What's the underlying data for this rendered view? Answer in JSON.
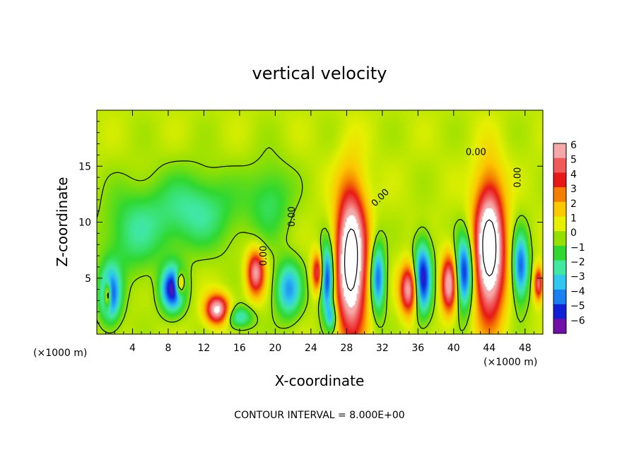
{
  "chart_data": {
    "type": "heatmap",
    "title": "vertical velocity",
    "xlabel": "X-coordinate",
    "ylabel": "Z-coordinate",
    "x_unit_label": "(×1000 m)",
    "x_unit_label_right": "(×1000 m)",
    "footer": "CONTOUR INTERVAL = 8.000E+00",
    "xlim": [
      0,
      50
    ],
    "ylim": [
      0,
      20
    ],
    "x_ticks": [
      4,
      8,
      12,
      16,
      20,
      24,
      28,
      32,
      36,
      40,
      44,
      48
    ],
    "y_ticks": [
      5,
      10,
      15
    ],
    "colorbar": {
      "levels": [
        6,
        5,
        4,
        3,
        2,
        1,
        0,
        -1,
        -2,
        -3,
        -4,
        -5,
        -6
      ],
      "labels": [
        "6",
        "5",
        "4",
        "3",
        "2",
        "1",
        "0",
        "−1",
        "−2",
        "−3",
        "−4",
        "−5",
        "−6"
      ],
      "colors": [
        "#f4a8a8",
        "#f05a5a",
        "#e81818",
        "#f57d00",
        "#fcc800",
        "#e6f000",
        "#96e000",
        "#30d830",
        "#40e8a0",
        "#30c8f0",
        "#1880f0",
        "#1020d8",
        "#7010a8"
      ]
    },
    "contour_labels": [
      "0.00",
      "0.00",
      "0.00",
      "0.00",
      "0.00"
    ],
    "features": [
      {
        "kind": "updraft",
        "x": 28.5,
        "z": 6.5,
        "sx": 1.7,
        "sz": 6.5,
        "amp": 9
      },
      {
        "kind": "updraft",
        "x": 44.0,
        "z": 7.5,
        "sx": 1.7,
        "sz": 6.0,
        "amp": 9
      },
      {
        "kind": "updraft",
        "x": 13.5,
        "z": 2.2,
        "sx": 1.3,
        "sz": 1.3,
        "amp": 6.5
      },
      {
        "kind": "updraft",
        "x": 17.8,
        "z": 5.5,
        "sx": 1.0,
        "sz": 2.0,
        "amp": 5.5
      },
      {
        "kind": "updraft",
        "x": 24.8,
        "z": 5.5,
        "sx": 0.7,
        "sz": 1.8,
        "amp": 5
      },
      {
        "kind": "updraft",
        "x": 35.0,
        "z": 4.0,
        "sx": 1.0,
        "sz": 2.2,
        "amp": 6
      },
      {
        "kind": "updraft",
        "x": 39.5,
        "z": 4.5,
        "sx": 0.9,
        "sz": 2.6,
        "amp": 6
      },
      {
        "kind": "updraft",
        "x": 9.3,
        "z": 4.5,
        "sx": 0.5,
        "sz": 1.0,
        "amp": 5
      },
      {
        "kind": "updraft",
        "x": 1.2,
        "z": 3.5,
        "sx": 0.4,
        "sz": 1.2,
        "amp": 5
      },
      {
        "kind": "updraft",
        "x": 49.5,
        "z": 4.5,
        "sx": 0.5,
        "sz": 1.5,
        "amp": 5
      },
      {
        "kind": "downdraft",
        "x": 25.8,
        "z": 5.0,
        "sx": 0.8,
        "sz": 3.0,
        "amp": -6.5
      },
      {
        "kind": "downdraft",
        "x": 31.5,
        "z": 5.0,
        "sx": 0.8,
        "sz": 3.0,
        "amp": -5
      },
      {
        "kind": "downdraft",
        "x": 36.5,
        "z": 5.0,
        "sx": 1.0,
        "sz": 3.2,
        "amp": -6
      },
      {
        "kind": "downdraft",
        "x": 41.2,
        "z": 5.5,
        "sx": 1.0,
        "sz": 3.2,
        "amp": -6
      },
      {
        "kind": "downdraft",
        "x": 47.5,
        "z": 6.0,
        "sx": 0.9,
        "sz": 3.0,
        "amp": -5
      },
      {
        "kind": "downdraft",
        "x": 8.5,
        "z": 4.0,
        "sx": 1.3,
        "sz": 2.0,
        "amp": -6
      },
      {
        "kind": "downdraft",
        "x": 1.5,
        "z": 3.5,
        "sx": 1.2,
        "sz": 2.5,
        "amp": -5
      },
      {
        "kind": "downdraft",
        "x": 21.5,
        "z": 4.0,
        "sx": 1.5,
        "sz": 2.5,
        "amp": -4
      },
      {
        "kind": "downdraft",
        "x": 11.0,
        "z": 11.0,
        "sx": 5.0,
        "sz": 3.5,
        "amp": -2.5
      },
      {
        "kind": "downdraft",
        "x": 4.0,
        "z": 9.0,
        "sx": 3.5,
        "sz": 4.0,
        "amp": -2
      },
      {
        "kind": "downdraft",
        "x": 19.5,
        "z": 12.0,
        "sx": 2.5,
        "sz": 3.5,
        "amp": -1.8
      },
      {
        "kind": "downdraft",
        "x": 16.0,
        "z": 1.5,
        "sx": 1.5,
        "sz": 1.0,
        "amp": -3
      },
      {
        "kind": "downdraft",
        "x": 26.3,
        "z": 1.5,
        "sx": 0.6,
        "sz": 1.2,
        "amp": -3
      }
    ]
  }
}
